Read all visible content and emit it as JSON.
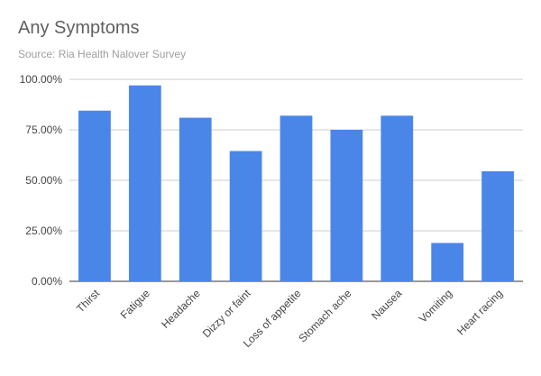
{
  "chart_data": {
    "type": "bar",
    "title": "Any Symptoms",
    "subtitle": "Source: Ria Health Nalover Survey",
    "xlabel": "",
    "ylabel": "",
    "categories": [
      "Thirst",
      "Fatigue",
      "Headache",
      "Dizzy or faint",
      "Loss of appetite",
      "Stomach ache",
      "Nausea",
      "Vomiting",
      "Heart racing"
    ],
    "values": [
      0.845,
      0.97,
      0.81,
      0.645,
      0.82,
      0.75,
      0.82,
      0.19,
      0.545
    ],
    "ylim": [
      0,
      1
    ],
    "yticks": [
      0,
      0.25,
      0.5,
      0.75,
      1
    ],
    "ytick_labels": [
      "0.00%",
      "25.00%",
      "50.00%",
      "75.00%",
      "100.00%"
    ],
    "grid": true,
    "legend": "none",
    "bar_color": "#4a86e8"
  }
}
